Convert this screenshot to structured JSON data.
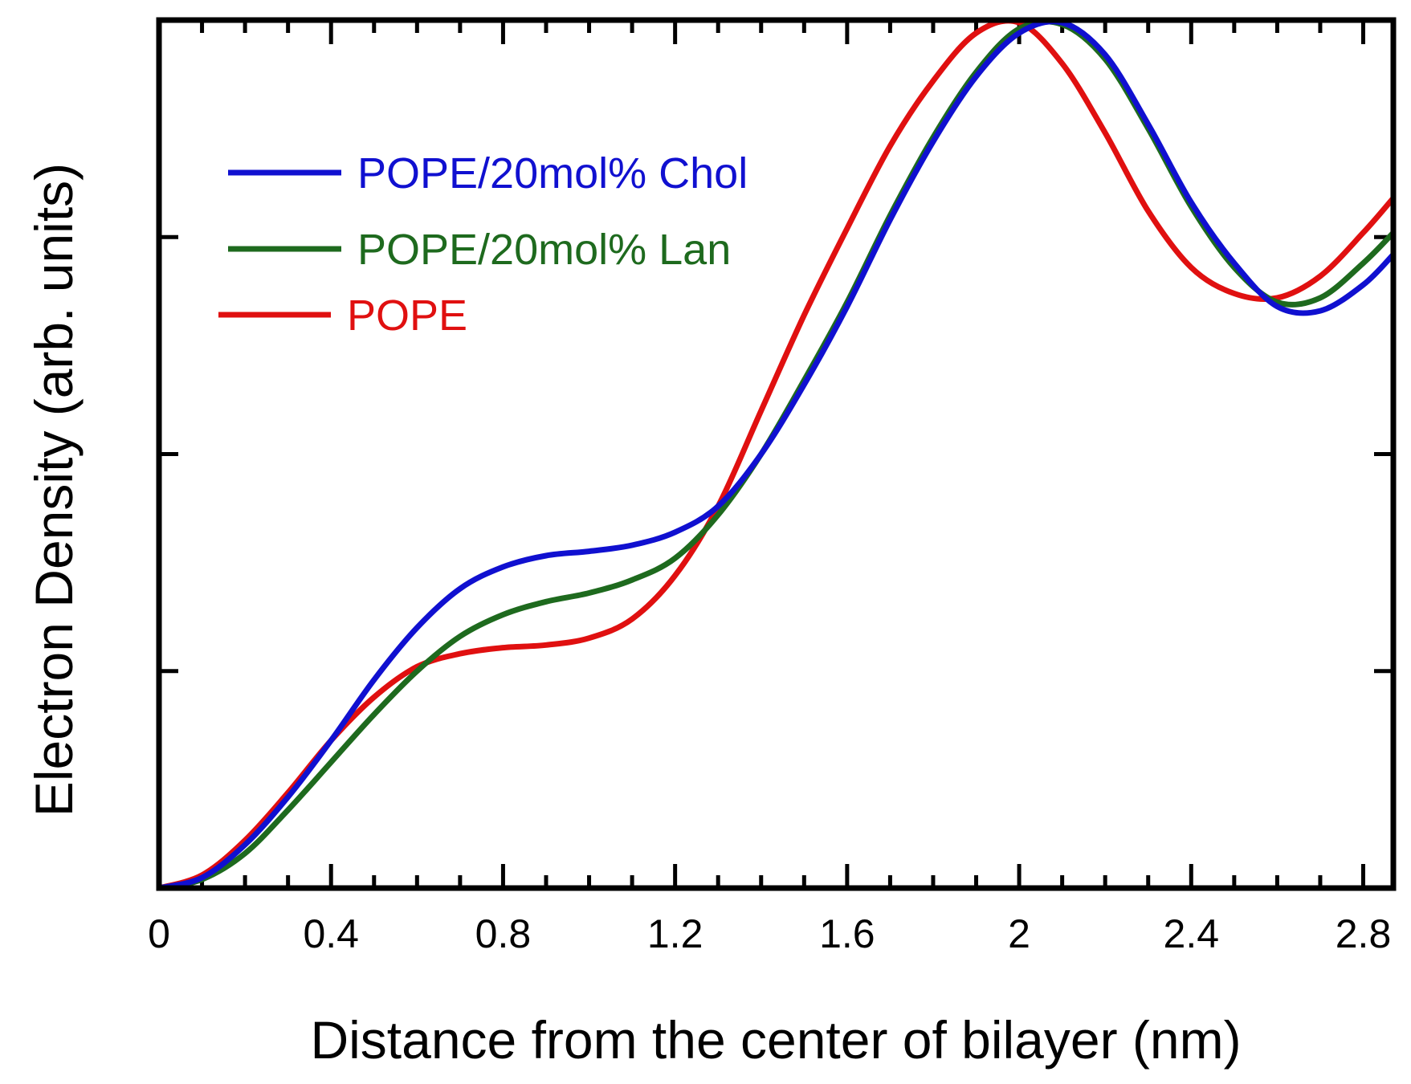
{
  "chart_data": {
    "type": "line",
    "title": "",
    "xlabel": "Distance from the center of bilayer (nm)",
    "ylabel": "Electron Density (arb. units)",
    "xlim": [
      0,
      2.87
    ],
    "ylim": [
      0,
      1.0
    ],
    "x_ticks": [
      0,
      0.4,
      0.8,
      1.2,
      1.6,
      2,
      2.4,
      2.8
    ],
    "x_tick_labels": [
      "0",
      "0.4",
      "0.8",
      "1.2",
      "1.6",
      "2",
      "2.4",
      "2.8"
    ],
    "y_ticks": [
      0.25,
      0.5,
      0.75,
      1.0
    ],
    "y_tick_labels_shown": false,
    "grid": false,
    "legend_position": "top-left",
    "series": [
      {
        "name": "POPE/20mol% Chol",
        "color": "#1010d0",
        "x": [
          0,
          0.1,
          0.2,
          0.3,
          0.4,
          0.5,
          0.6,
          0.7,
          0.8,
          0.9,
          1.0,
          1.1,
          1.2,
          1.3,
          1.4,
          1.5,
          1.6,
          1.7,
          1.8,
          1.9,
          2.0,
          2.1,
          2.2,
          2.3,
          2.4,
          2.5,
          2.6,
          2.7,
          2.8,
          2.87
        ],
        "values": [
          0,
          0.012,
          0.05,
          0.105,
          0.17,
          0.24,
          0.3,
          0.345,
          0.37,
          0.383,
          0.388,
          0.395,
          0.41,
          0.44,
          0.5,
          0.58,
          0.67,
          0.77,
          0.86,
          0.935,
          0.985,
          0.997,
          0.96,
          0.88,
          0.79,
          0.72,
          0.67,
          0.665,
          0.695,
          0.73
        ]
      },
      {
        "name": "POPE/20mol% Lan",
        "color": "#1e6a1e",
        "x": [
          0,
          0.1,
          0.2,
          0.3,
          0.4,
          0.5,
          0.6,
          0.7,
          0.8,
          0.9,
          1.0,
          1.1,
          1.2,
          1.3,
          1.4,
          1.5,
          1.6,
          1.7,
          1.8,
          1.9,
          2.0,
          2.1,
          2.2,
          2.3,
          2.4,
          2.5,
          2.6,
          2.7,
          2.8,
          2.87
        ],
        "values": [
          0,
          0.01,
          0.04,
          0.09,
          0.145,
          0.2,
          0.25,
          0.29,
          0.315,
          0.33,
          0.34,
          0.355,
          0.38,
          0.43,
          0.5,
          0.585,
          0.675,
          0.775,
          0.865,
          0.94,
          0.99,
          0.995,
          0.955,
          0.875,
          0.785,
          0.715,
          0.675,
          0.68,
          0.72,
          0.755
        ]
      },
      {
        "name": "POPE",
        "color": "#e01010",
        "x": [
          0,
          0.1,
          0.2,
          0.3,
          0.4,
          0.5,
          0.6,
          0.7,
          0.8,
          0.9,
          1.0,
          1.1,
          1.2,
          1.3,
          1.4,
          1.5,
          1.6,
          1.7,
          1.8,
          1.9,
          2.0,
          2.1,
          2.2,
          2.3,
          2.4,
          2.5,
          2.6,
          2.7,
          2.8,
          2.87
        ],
        "values": [
          0,
          0.015,
          0.055,
          0.11,
          0.17,
          0.22,
          0.255,
          0.27,
          0.277,
          0.28,
          0.288,
          0.31,
          0.36,
          0.44,
          0.55,
          0.66,
          0.76,
          0.855,
          0.93,
          0.985,
          0.997,
          0.95,
          0.87,
          0.78,
          0.715,
          0.685,
          0.68,
          0.705,
          0.755,
          0.795
        ]
      }
    ]
  }
}
